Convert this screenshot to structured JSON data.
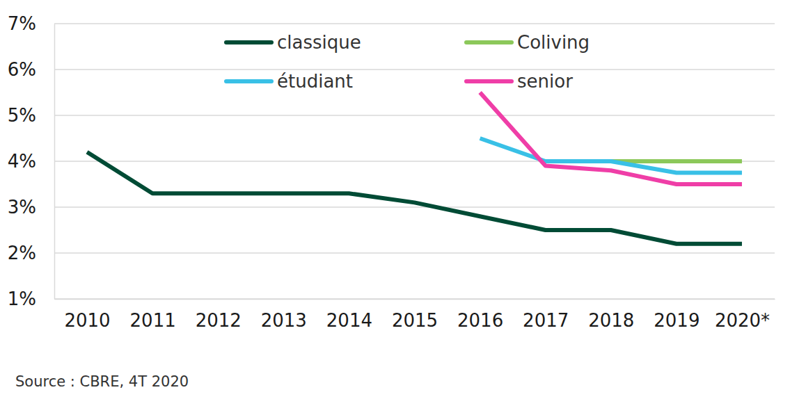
{
  "chart_data": {
    "type": "line",
    "categories": [
      "2010",
      "2011",
      "2012",
      "2013",
      "2014",
      "2015",
      "2016",
      "2017",
      "2018",
      "2019",
      "2020*"
    ],
    "series": [
      {
        "name": "classique",
        "color": "#004b35",
        "values": [
          4.2,
          3.3,
          3.3,
          3.3,
          3.3,
          3.1,
          2.8,
          2.5,
          2.5,
          2.2,
          2.2
        ]
      },
      {
        "name": "Coliving",
        "color": "#8cc85a",
        "values": [
          null,
          null,
          null,
          null,
          null,
          null,
          null,
          4.0,
          4.0,
          4.0,
          4.0
        ]
      },
      {
        "name": "étudiant",
        "color": "#39c0e6",
        "values": [
          null,
          null,
          null,
          null,
          null,
          null,
          4.5,
          4.0,
          4.0,
          3.75,
          3.75
        ]
      },
      {
        "name": "senior",
        "color": "#ef3ea7",
        "values": [
          null,
          null,
          null,
          null,
          null,
          null,
          5.5,
          3.9,
          3.8,
          3.5,
          3.5
        ]
      }
    ],
    "ylim": [
      1,
      7
    ],
    "yticks": [
      {
        "value": 1,
        "label": "1%"
      },
      {
        "value": 2,
        "label": "2%"
      },
      {
        "value": 3,
        "label": "3%"
      },
      {
        "value": 4,
        "label": "4%"
      },
      {
        "value": 5,
        "label": "5%"
      },
      {
        "value": 6,
        "label": "6%"
      },
      {
        "value": 7,
        "label": "7%"
      }
    ],
    "grid": true,
    "legend": "top",
    "source": "Source : CBRE, 4T 2020"
  }
}
